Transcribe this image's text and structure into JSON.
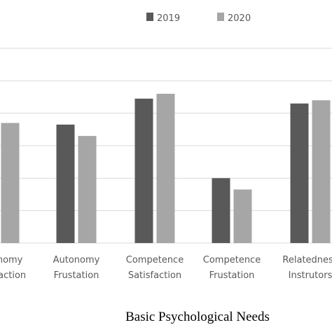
{
  "chart_data": {
    "type": "bar",
    "title": "",
    "xlabel": "Basic Psychological Needs",
    "ylabel": "",
    "categories": [
      [
        "Autonomy",
        "Satisfaction"
      ],
      [
        "Autonomy",
        "Frustation"
      ],
      [
        "Competence",
        "Satisfaction"
      ],
      [
        "Competence",
        "Frustation"
      ],
      [
        "Relatedness",
        "Instrutors"
      ]
    ],
    "series": [
      {
        "name": "2019",
        "color": "#595959",
        "values": [
          null,
          3.65,
          4.45,
          2.0,
          4.3
        ]
      },
      {
        "name": "2020",
        "color": "#a6a6a6",
        "values": [
          3.7,
          3.3,
          4.6,
          1.65,
          4.4
        ]
      }
    ],
    "ylim": [
      0,
      6
    ],
    "grid": true,
    "legend": "top"
  }
}
